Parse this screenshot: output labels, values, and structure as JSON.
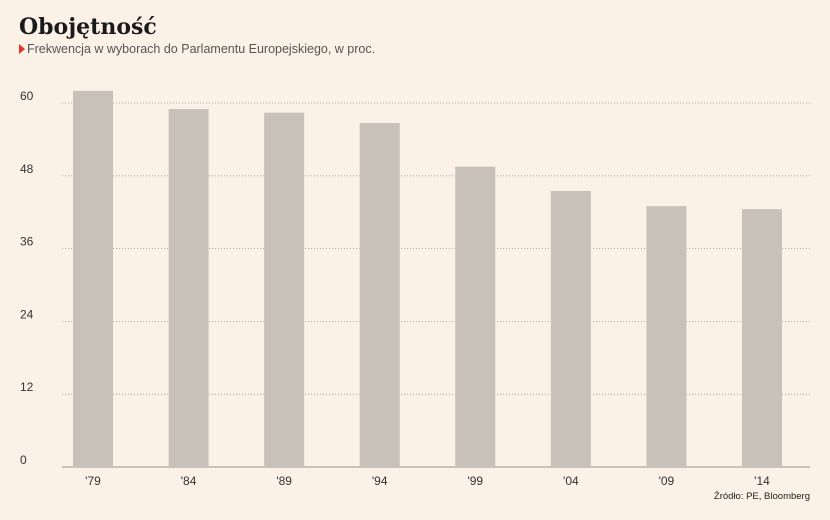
{
  "header": {
    "title": "Obojętność",
    "subtitle": "Frekwencja w wyborach do Parlamentu Europejskiego, w proc.",
    "source": "Źródło: PE, Bloomberg"
  },
  "colors": {
    "background": "#fbf1e6",
    "bar": "#c7c1ba",
    "grid": "#9a9590",
    "marker": "#e8322b"
  },
  "chart_data": {
    "type": "bar",
    "title": "Obojętność",
    "subtitle": "Frekwencja w wyborach do Parlamentu Europejskiego, w proc.",
    "categories": [
      "'79",
      "'84",
      "'89",
      "'94",
      "'99",
      "'04",
      "'09",
      "'14"
    ],
    "values": [
      62.0,
      59.0,
      58.4,
      56.7,
      49.5,
      45.5,
      43.0,
      42.5
    ],
    "ylim": [
      0,
      60
    ],
    "yticks": [
      0,
      12,
      24,
      36,
      48,
      60
    ],
    "grid": true,
    "xlabel": "",
    "ylabel": ""
  }
}
